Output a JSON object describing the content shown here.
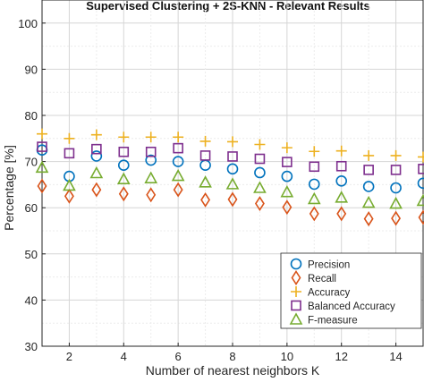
{
  "chart_data": {
    "type": "scatter",
    "title": "Supervised Clustering + 2S-KNN - Relevant Results",
    "xlabel": "Number of nearest neighbors K",
    "ylabel": "Percentage [%]",
    "xlim": [
      1,
      15
    ],
    "ylim": [
      30,
      105
    ],
    "xticks": [
      2,
      4,
      6,
      8,
      10,
      12,
      14
    ],
    "yticks": [
      30,
      40,
      50,
      60,
      70,
      80,
      90,
      100
    ],
    "grid": true,
    "legend_position": "bottom-right",
    "x": [
      1,
      2,
      3,
      4,
      5,
      6,
      7,
      8,
      9,
      10,
      11,
      12,
      13,
      14,
      15
    ],
    "series": [
      {
        "name": "Precision",
        "marker": "circle",
        "color": "#0072BD",
        "values": [
          72.5,
          66.8,
          71.2,
          69.2,
          70.3,
          70.0,
          69.2,
          68.4,
          67.6,
          66.8,
          65.1,
          65.8,
          64.6,
          64.3,
          65.3
        ]
      },
      {
        "name": "Recall",
        "marker": "diamond",
        "color": "#D95319",
        "values": [
          64.7,
          62.5,
          63.9,
          63.0,
          62.8,
          63.9,
          61.7,
          61.8,
          60.9,
          60.1,
          58.7,
          58.7,
          57.6,
          57.7,
          57.9
        ]
      },
      {
        "name": "Accuracy",
        "marker": "plus",
        "color": "#EDB120",
        "values": [
          76.0,
          75.0,
          75.8,
          75.3,
          75.3,
          75.3,
          74.4,
          74.3,
          73.7,
          73.0,
          72.2,
          72.3,
          71.3,
          71.3,
          71.0
        ]
      },
      {
        "name": "Balanced Accuracy",
        "marker": "square",
        "color": "#7E2F8E",
        "values": [
          73.2,
          71.8,
          72.7,
          72.1,
          72.1,
          72.9,
          71.3,
          71.1,
          70.6,
          69.9,
          68.9,
          69.0,
          68.2,
          68.2,
          68.4
        ]
      },
      {
        "name": "F-measure",
        "marker": "triangle",
        "color": "#77AC30",
        "values": [
          68.7,
          64.8,
          67.5,
          66.2,
          66.4,
          66.9,
          65.5,
          65.1,
          64.3,
          63.4,
          61.9,
          62.2,
          61.1,
          60.9,
          61.5
        ]
      }
    ]
  }
}
